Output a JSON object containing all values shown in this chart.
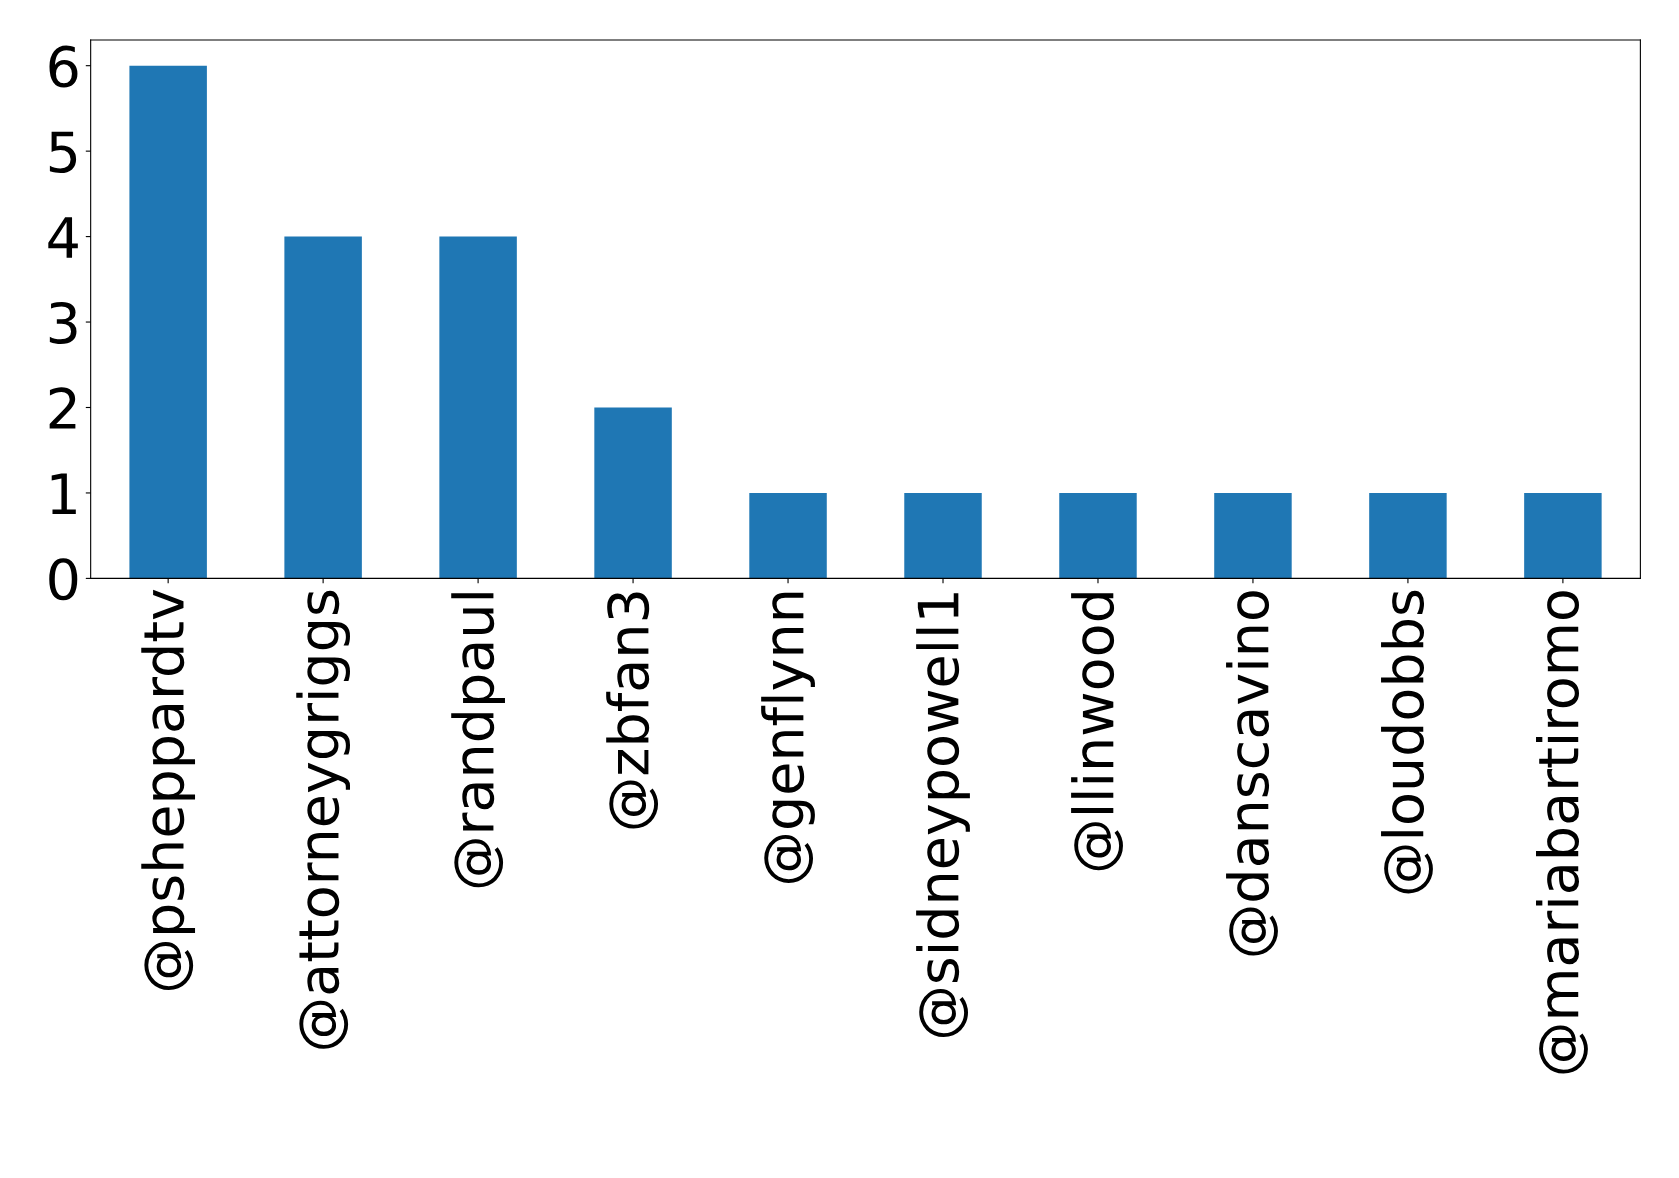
{
  "chart_data": {
    "type": "bar",
    "categories": [
      "@psheppardtv",
      "@attorneygriggs",
      "@randpaul",
      "@zbfan3",
      "@genflynn",
      "@sidneypowell1",
      "@llinwood",
      "@danscavino",
      "@loudobbs",
      "@mariabartiromo"
    ],
    "values": [
      6,
      4,
      4,
      2,
      1,
      1,
      1,
      1,
      1,
      1
    ],
    "color": "#1f77b4",
    "ylim": [
      0,
      6.3
    ],
    "yticks": [
      0,
      1,
      2,
      3,
      4,
      5,
      6
    ],
    "grid": false,
    "legend": false
  }
}
